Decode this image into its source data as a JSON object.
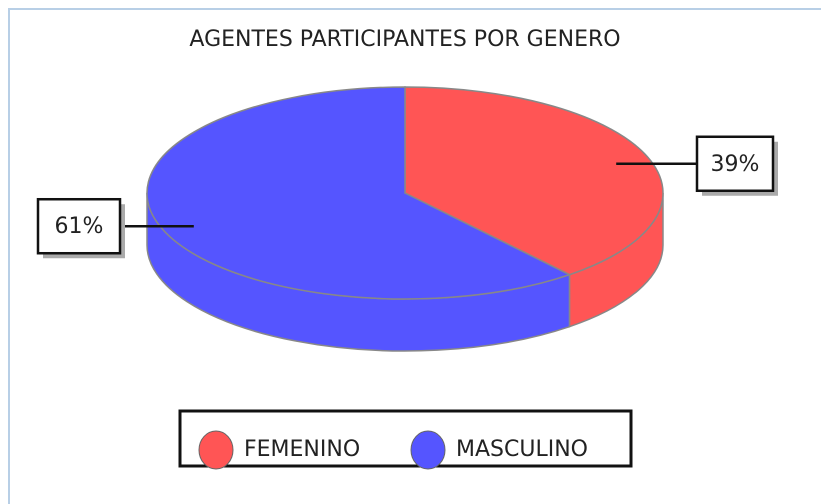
{
  "chart_data": {
    "type": "pie",
    "title": "AGENTES PARTICIPANTES POR GENERO",
    "categories": [
      "FEMENINO",
      "MASCULINO"
    ],
    "values": [
      39,
      61
    ],
    "value_labels": [
      "39%",
      "61%"
    ],
    "colors": [
      "#ff5555",
      "#5555ff"
    ],
    "legend": "bottom"
  }
}
